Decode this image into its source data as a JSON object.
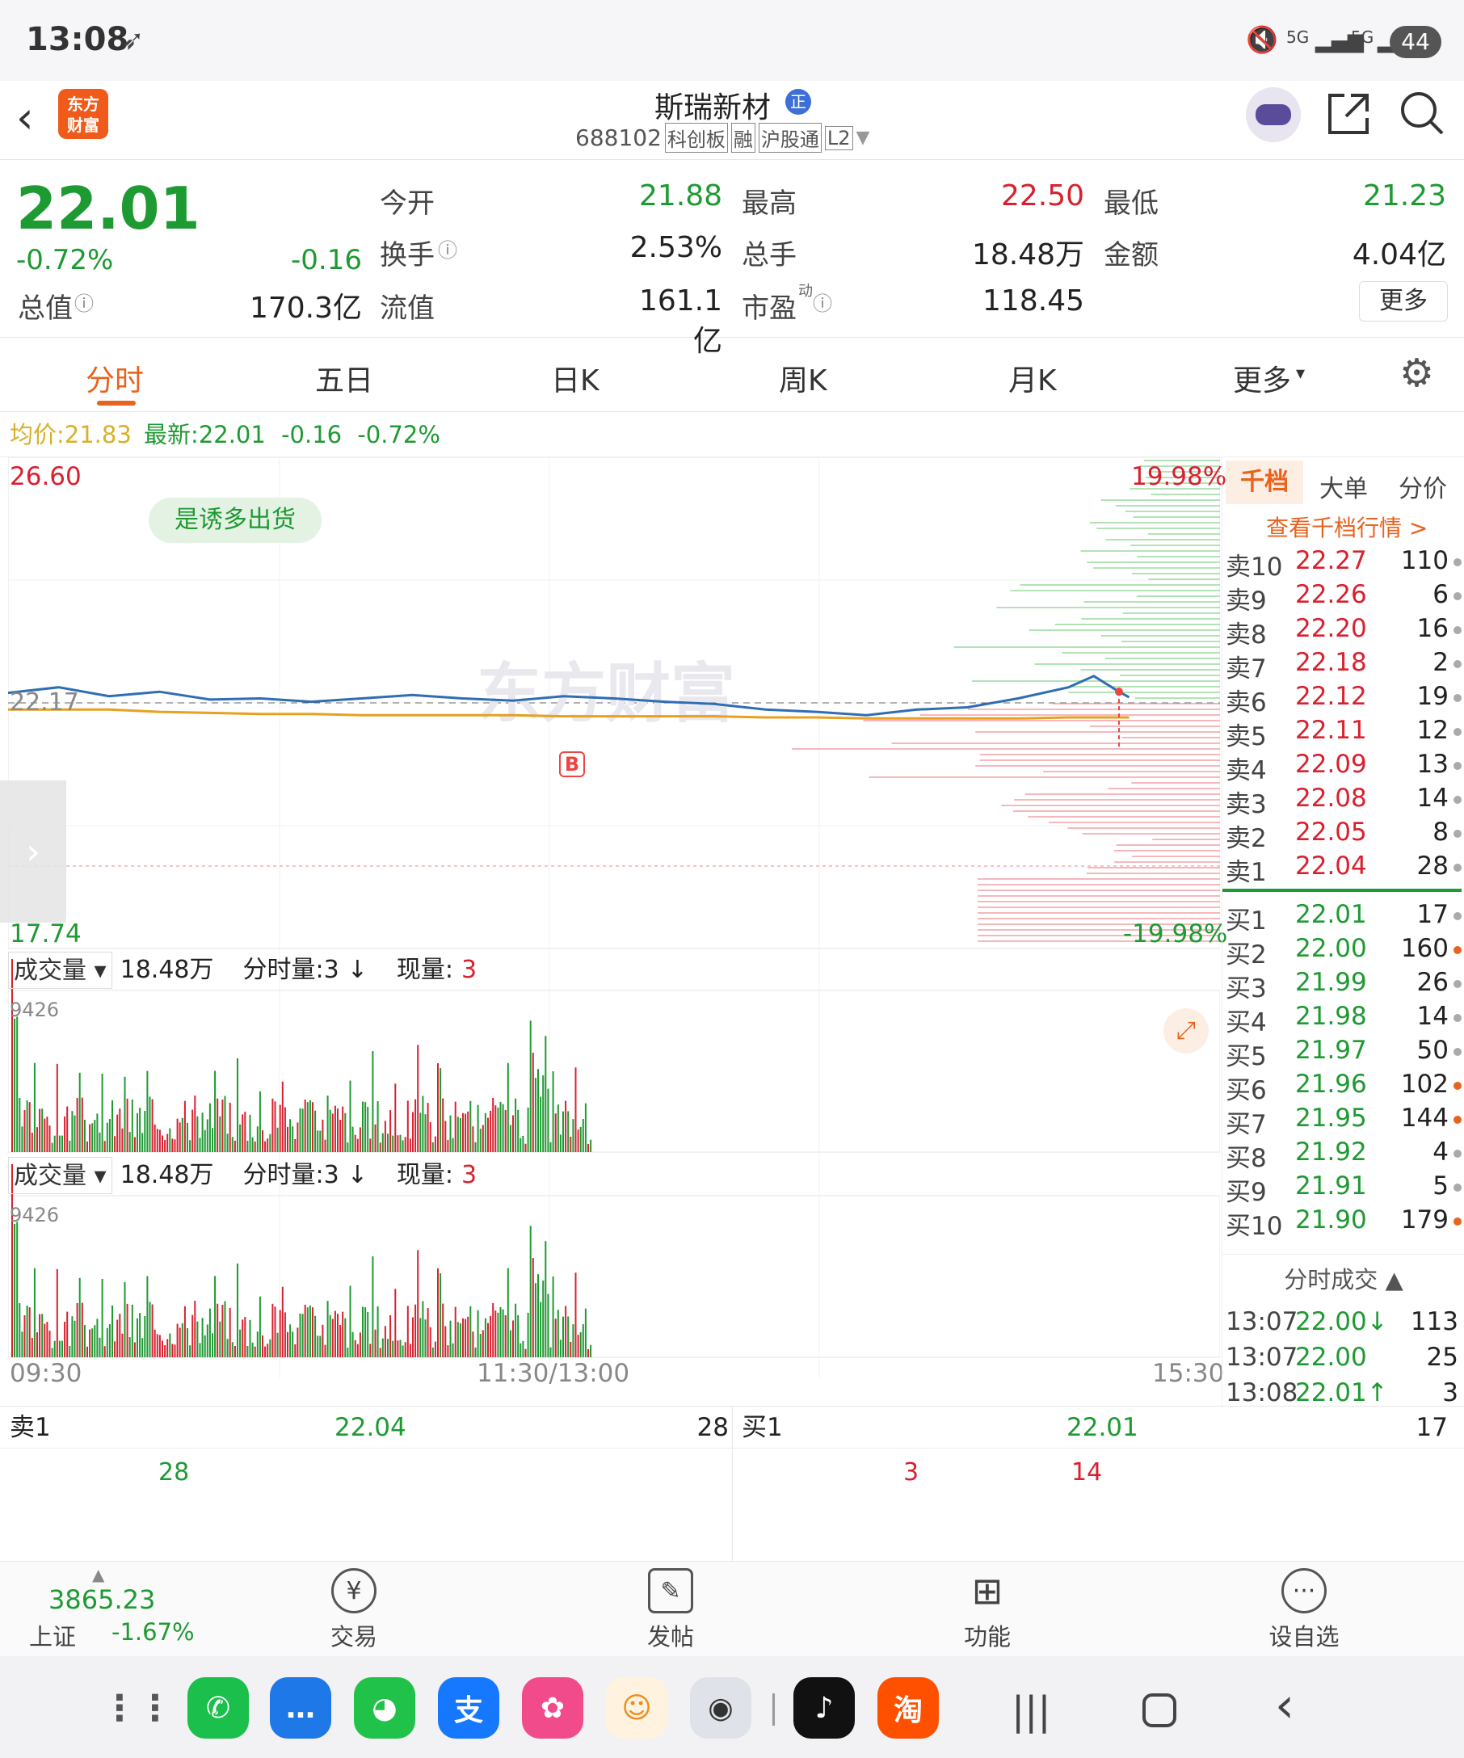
{
  "status_bar": {
    "time": "13:08",
    "battery": "44",
    "net1": "5G",
    "net2": "5G"
  },
  "header": {
    "app_logo_line1": "东方",
    "app_logo_line2": "财富",
    "stock_name": "斯瑞新材",
    "name_badge": "正",
    "code": "688102",
    "tags": [
      "科创板",
      "融",
      "沪股通",
      "L2"
    ]
  },
  "quote": {
    "price": "22.01",
    "change_pct": "-0.72%",
    "change": "-0.16",
    "open_label": "今开",
    "open": "21.88",
    "high_label": "最高",
    "high": "22.50",
    "low_label": "最低",
    "low": "21.23",
    "turnover_label": "换手",
    "turnover": "2.53%",
    "volume_label": "总手",
    "volume": "18.48万",
    "amount_label": "金额",
    "amount": "4.04亿",
    "mktcap_label": "总值",
    "mktcap": "170.3亿",
    "float_label": "流值",
    "float": "161.1亿",
    "pe_label": "市盈",
    "pe_sup": "动",
    "pe": "118.45",
    "more": "更多"
  },
  "tabs": [
    {
      "label": "分时"
    },
    {
      "label": "五日"
    },
    {
      "label": "日K"
    },
    {
      "label": "周K"
    },
    {
      "label": "月K"
    },
    {
      "label": "更多"
    }
  ],
  "avg_line": {
    "avg_label": "均价:",
    "avg": "21.83",
    "latest_label": "最新:",
    "latest": "22.01",
    "chg": "-0.16",
    "chg_pct": "-0.72%"
  },
  "chart": {
    "top_price": "26.60",
    "bottom_price": "17.74",
    "top_pct": "19.98%",
    "bottom_pct": "-19.98%",
    "ref_price": "22.17",
    "badge": "是诱多出货",
    "marker": "B",
    "watermark": "东方财富",
    "vol_label": "成交量",
    "vol_total": "18.48万",
    "fenshi_label": "分时量:3",
    "xianliang_label": "现量:",
    "xianliang": "3",
    "vol_max": "9426",
    "x_ticks": [
      "09:30",
      "11:30/13:00",
      "15:30"
    ]
  },
  "chart_data": {
    "type": "line",
    "title": "",
    "x": [
      0,
      10,
      20,
      30,
      40,
      50,
      60,
      70,
      80,
      90,
      100,
      110,
      120,
      130,
      140,
      150,
      160,
      170,
      180,
      190,
      200,
      210,
      215,
      220,
      222
    ],
    "series": [
      {
        "name": "",
        "values": [
          22.05,
          22.1,
          22.02,
          22.06,
          21.99,
          22.0,
          21.97,
          22.0,
          22.03,
          22.0,
          21.98,
          22.02,
          22.0,
          21.97,
          21.95,
          21.9,
          21.88,
          21.85,
          21.9,
          21.92,
          22.0,
          22.1,
          22.2,
          22.06,
          22.01
        ]
      },
      {
        "name": "",
        "values": [
          21.9,
          21.9,
          21.9,
          21.88,
          21.87,
          21.86,
          21.86,
          21.85,
          21.85,
          21.85,
          21.85,
          21.84,
          21.84,
          21.84,
          21.84,
          21.83,
          21.83,
          21.82,
          21.82,
          21.82,
          21.82,
          21.83,
          21.83,
          21.83,
          21.83
        ]
      }
    ],
    "ylim": [
      17.74,
      26.6
    ],
    "xlabel": "",
    "ylabel": ""
  },
  "book": {
    "tabs": [
      "千档",
      "大单",
      "分价"
    ],
    "link": "查看千档行情 >",
    "asks": [
      {
        "label": "卖10",
        "price": "22.27",
        "vol": "110"
      },
      {
        "label": "卖9",
        "price": "22.26",
        "vol": "6"
      },
      {
        "label": "卖8",
        "price": "22.20",
        "vol": "16"
      },
      {
        "label": "卖7",
        "price": "22.18",
        "vol": "2"
      },
      {
        "label": "卖6",
        "price": "22.12",
        "vol": "19"
      },
      {
        "label": "卖5",
        "price": "22.11",
        "vol": "12"
      },
      {
        "label": "卖4",
        "price": "22.09",
        "vol": "13"
      },
      {
        "label": "卖3",
        "price": "22.08",
        "vol": "14"
      },
      {
        "label": "卖2",
        "price": "22.05",
        "vol": "8"
      },
      {
        "label": "卖1",
        "price": "22.04",
        "vol": "28"
      }
    ],
    "bids": [
      {
        "label": "买1",
        "price": "22.01",
        "vol": "17"
      },
      {
        "label": "买2",
        "price": "22.00",
        "vol": "160"
      },
      {
        "label": "买3",
        "price": "21.99",
        "vol": "26"
      },
      {
        "label": "买4",
        "price": "21.98",
        "vol": "14"
      },
      {
        "label": "买5",
        "price": "21.97",
        "vol": "50"
      },
      {
        "label": "买6",
        "price": "21.96",
        "vol": "102"
      },
      {
        "label": "买7",
        "price": "21.95",
        "vol": "144"
      },
      {
        "label": "买8",
        "price": "21.92",
        "vol": "4"
      },
      {
        "label": "买9",
        "price": "21.91",
        "vol": "5"
      },
      {
        "label": "买10",
        "price": "21.90",
        "vol": "179"
      }
    ],
    "trades_title": "分时成交",
    "trades": [
      {
        "time": "13:07",
        "price": "22.00↓",
        "vol": "113"
      },
      {
        "time": "13:07",
        "price": "22.00",
        "vol": "25"
      },
      {
        "time": "13:08",
        "price": "22.01↑",
        "vol": "3"
      }
    ]
  },
  "strip": {
    "sell_label": "卖1",
    "sell_price": "22.04",
    "sell_vol": "28",
    "buy_label": "买1",
    "buy_price": "22.01",
    "buy_vol": "17",
    "sell_q": "28",
    "buy_q1": "3",
    "buy_q2": "14"
  },
  "toolbar": {
    "index_value": "3865.23",
    "index_name": "上证",
    "index_chg": "-1.67%",
    "trade": "交易",
    "post": "发帖",
    "func": "功能",
    "watch": "设自选"
  }
}
